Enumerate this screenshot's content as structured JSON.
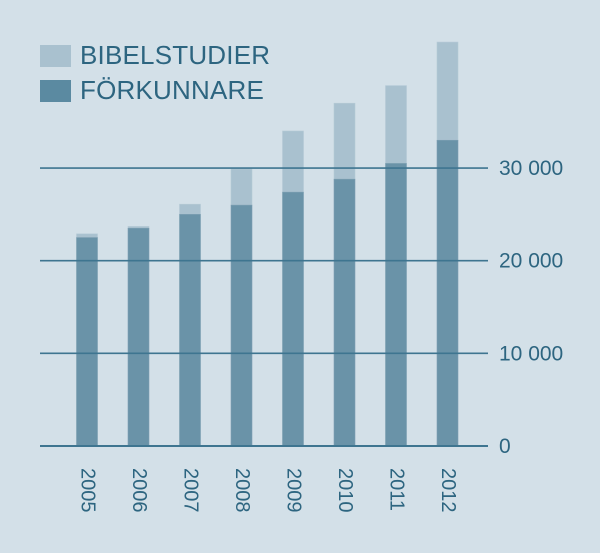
{
  "colors": {
    "background": "#d3e0e8",
    "bibelstudier": "#a9c1cf",
    "forkunnare": "#6a93a8",
    "gridline": "#3e7590",
    "text": "#2d6580"
  },
  "legend": {
    "items": [
      {
        "label": "BIBELSTUDIER",
        "color": "#a9c1cf"
      },
      {
        "label": "FÖRKUNNARE",
        "color": "#5b8aa1"
      }
    ]
  },
  "y_axis": {
    "ticks": [
      {
        "value": 0,
        "label": "0"
      },
      {
        "value": 10000,
        "label": "10 000"
      },
      {
        "value": 20000,
        "label": "20 000"
      },
      {
        "value": 30000,
        "label": "30 000"
      }
    ]
  },
  "chart_data": {
    "type": "bar",
    "stacked": true,
    "title": "",
    "xlabel": "",
    "ylabel": "",
    "categories": [
      "2005",
      "2006",
      "2007",
      "2008",
      "2009",
      "2010",
      "2011",
      "2012"
    ],
    "series": [
      {
        "name": "FÖRKUNNARE",
        "values": [
          22500,
          23500,
          25000,
          26000,
          27400,
          28800,
          30500,
          33000
        ]
      },
      {
        "name": "BIBELSTUDIER",
        "values": [
          400,
          200,
          1100,
          3900,
          6600,
          8200,
          8400,
          10600
        ]
      }
    ],
    "totals": [
      22900,
      23700,
      26100,
      29900,
      34000,
      37000,
      38900,
      43600
    ],
    "ylim": [
      0,
      44000
    ],
    "yticks": [
      0,
      10000,
      20000,
      30000
    ],
    "grid": true,
    "legend_position": "top-left",
    "y_axis_position": "right"
  }
}
